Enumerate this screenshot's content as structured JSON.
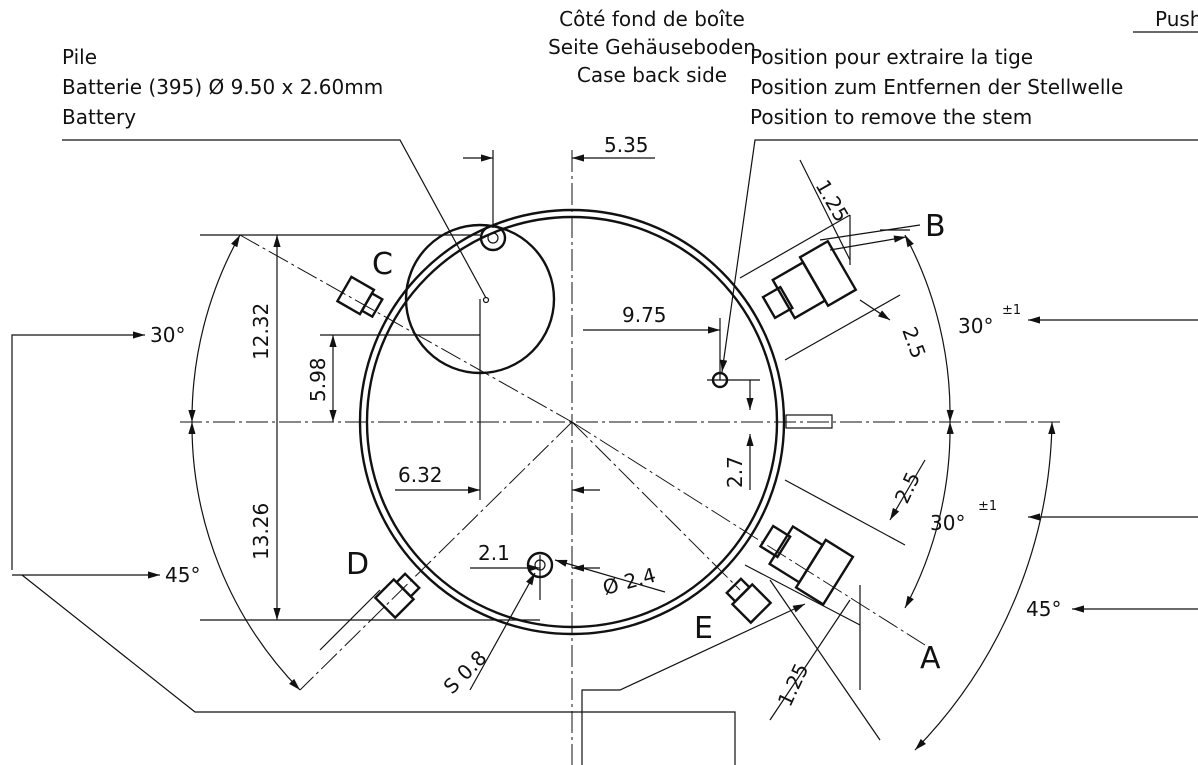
{
  "header": {
    "lines": [
      "Côté fond de boîte",
      "Seite Gehäuseboden",
      "Case back side"
    ],
    "corner": "Push"
  },
  "battery": {
    "lines": [
      "Pile",
      "Batterie (395) Ø 9.50 x 2.60mm",
      "Battery"
    ]
  },
  "stem": {
    "lines": [
      "Position pour extraire la tige",
      "Position zum Entfernen der Stellwelle",
      "Position to remove the stem"
    ]
  },
  "letters": {
    "a": "A",
    "b": "B",
    "c": "C",
    "d": "D",
    "e": "E"
  },
  "dimensions": {
    "top_offset": "5.35",
    "b_width": "1.25",
    "b_spacing": "2.5",
    "upper_height": "12.32",
    "battery_height": "5.98",
    "stem_offset": "9.75",
    "battery_offset": "6.32",
    "stem_height": "2.7",
    "lower_height": "13.26",
    "a_spacing": "2.5",
    "a_width": "1.25",
    "hole_offset": "2.1",
    "hole_diameter": "Ø 2.4",
    "screw": "S 0.8"
  },
  "angles": {
    "left_upper": "30°",
    "left_lower": "45°",
    "right_upper": "30°",
    "right_upper_tol": "±1",
    "right_middle": "30°",
    "right_middle_tol": "±1",
    "right_lower": "45°"
  }
}
